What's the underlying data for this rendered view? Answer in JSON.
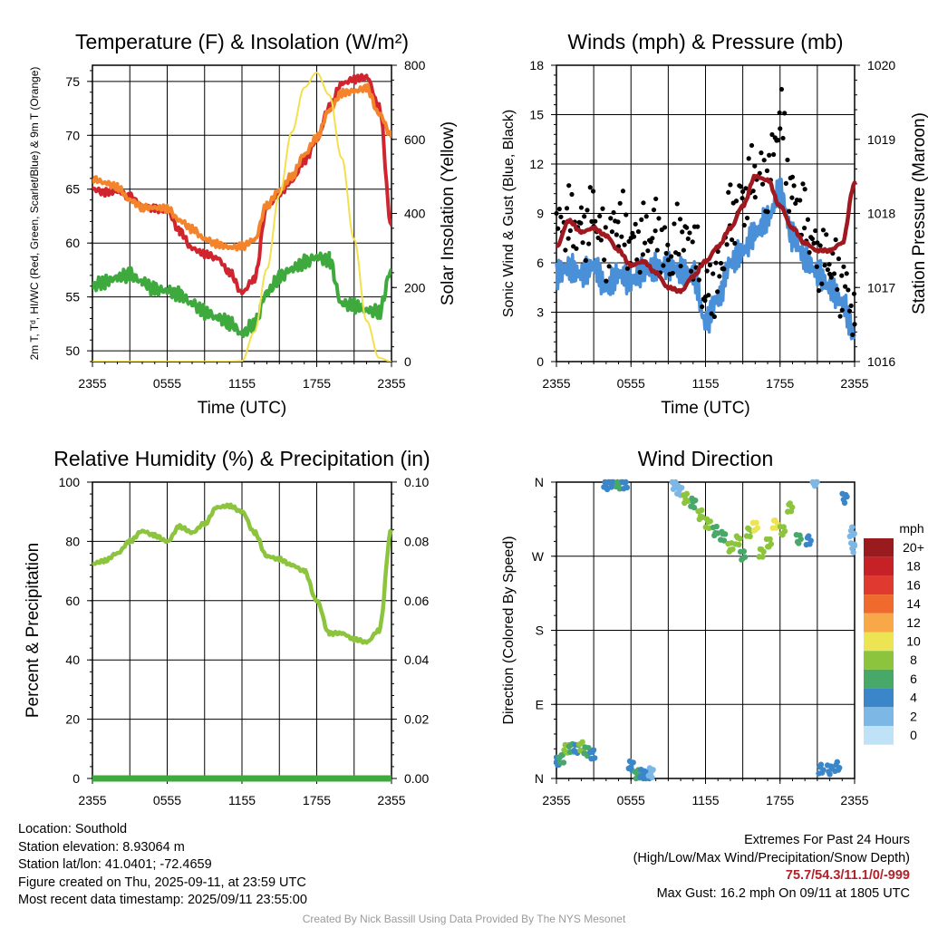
{
  "panels": {
    "temp": {
      "title": "Temperature (F) & Insolation (W/m²)",
      "xlabel": "Time (UTC)",
      "ylabel_left": "2m T, Tᵈ, HI/WC (Red, Green, Scarlet/Blue) & 9m T (Orange)",
      "ylabel_right": "Solar Insolation (Yellow)"
    },
    "wind": {
      "title": "Winds (mph) & Pressure (mb)",
      "xlabel": "Time (UTC)",
      "ylabel_left": "Sonic Wind & Gust (Blue, Black)",
      "ylabel_right": "Station Pressure (Maroon)"
    },
    "rh": {
      "title": "Relative Humidity (%) & Precipitation (in)",
      "ylabel_left": "Percent & Precipitation"
    },
    "dir": {
      "title": "Wind Direction",
      "ylabel_left": "Direction (Colored By Speed)",
      "colorbar_title": "mph"
    }
  },
  "time_ticks": [
    "2355",
    "0555",
    "1155",
    "1755",
    "2355"
  ],
  "chart_data": [
    {
      "type": "line",
      "id": "temp",
      "title": "Temperature (F) & Insolation (W/m²)",
      "xlabel": "Time (UTC)",
      "x": [
        0,
        1,
        2,
        3,
        4,
        5,
        6,
        7,
        8,
        9,
        10,
        11,
        12,
        13,
        14,
        15,
        16,
        17,
        18,
        19,
        20,
        21,
        22,
        23,
        24
      ],
      "ylim": [
        49,
        76.5
      ],
      "yticks": [
        50,
        55,
        60,
        65,
        70,
        75
      ],
      "y2lim": [
        0,
        800
      ],
      "y2ticks": [
        0,
        200,
        400,
        600,
        800
      ],
      "series": [
        {
          "key": "t2m",
          "color": "#d0252e",
          "axis": "left",
          "values": [
            65,
            64.7,
            64.8,
            64.3,
            63.4,
            63.2,
            63,
            61.1,
            59.5,
            59,
            58.6,
            57.3,
            55.4,
            56.7,
            63.3,
            64.6,
            65.8,
            67.6,
            69.6,
            72.6,
            74.8,
            75.2,
            75.4,
            72.7,
            61.6
          ]
        },
        {
          "key": "t9m",
          "color": "#f4842c",
          "axis": "left",
          "values": [
            66,
            65.6,
            65.2,
            64,
            63.3,
            63.3,
            63.2,
            62.1,
            61.3,
            60.4,
            59.9,
            59.6,
            59.7,
            60.3,
            63.5,
            64.9,
            66.2,
            68.2,
            69.8,
            72.3,
            73.9,
            74.1,
            74.4,
            72,
            70
          ]
        },
        {
          "key": "td",
          "color": "#3ea93c",
          "axis": "left",
          "values": [
            56,
            56.4,
            56.8,
            57.1,
            56.4,
            55.7,
            55.6,
            55.2,
            54.4,
            53.6,
            53.1,
            52.6,
            51.6,
            52.5,
            55.4,
            56.8,
            57.6,
            58.2,
            58.7,
            58.4,
            54.4,
            54.2,
            53.8,
            53.6,
            57.5
          ]
        },
        {
          "key": "solar",
          "color": "#f3e04d",
          "axis": "right",
          "values": [
            0,
            0,
            0,
            0,
            0,
            0,
            0,
            0,
            0,
            0,
            0,
            0,
            2,
            80,
            250,
            450,
            620,
            740,
            780,
            720,
            550,
            330,
            110,
            10,
            0
          ]
        }
      ]
    },
    {
      "type": "line",
      "id": "wind",
      "title": "Winds (mph) & Pressure (mb)",
      "xlabel": "Time (UTC)",
      "x": [
        0,
        1,
        2,
        3,
        4,
        5,
        6,
        7,
        8,
        9,
        10,
        11,
        12,
        13,
        14,
        15,
        16,
        17,
        18,
        19,
        20,
        21,
        22,
        23,
        24
      ],
      "ylim": [
        0,
        18
      ],
      "yticks": [
        0,
        3,
        6,
        9,
        12,
        15,
        18
      ],
      "y2lim": [
        1016,
        1020
      ],
      "y2ticks": [
        1016,
        1017,
        1018,
        1019,
        1020
      ],
      "series": [
        {
          "key": "wind",
          "color": "#4a90d9",
          "axis": "left",
          "values": [
            5.3,
            5.7,
            5.3,
            5.8,
            4.5,
            5.3,
            4.9,
            5.5,
            5.7,
            5.8,
            5.5,
            5.3,
            2.4,
            3.8,
            6,
            6.7,
            7.8,
            8.7,
            10.4,
            7.6,
            6.3,
            5.4,
            4.5,
            3.6,
            1.6
          ]
        },
        {
          "key": "gust",
          "color": "#000000",
          "axis": "left",
          "values": [
            8.1,
            8.6,
            8,
            8.9,
            7,
            8.6,
            7.1,
            7.6,
            8.1,
            6.3,
            7.7,
            6.9,
            4.1,
            5,
            8.8,
            9.9,
            11.4,
            11,
            14.8,
            10.1,
            8.7,
            6.4,
            6.1,
            4.7,
            3.2
          ]
        },
        {
          "key": "pressure",
          "color": "#a01820",
          "axis": "right",
          "values": [
            1017.55,
            1017.9,
            1017.75,
            1017.8,
            1017.7,
            1017.5,
            1017.3,
            1017.35,
            1017.2,
            1017.0,
            1016.95,
            1017.15,
            1017.35,
            1017.55,
            1017.8,
            1018.1,
            1018.5,
            1018.45,
            1018.1,
            1017.8,
            1017.6,
            1017.5,
            1017.5,
            1017.6,
            1018.4
          ]
        }
      ]
    },
    {
      "type": "line",
      "id": "rh",
      "title": "Relative Humidity (%) & Precipitation (in)",
      "x": [
        0,
        1,
        2,
        3,
        4,
        5,
        6,
        7,
        8,
        9,
        10,
        11,
        12,
        13,
        14,
        15,
        16,
        17,
        18,
        19,
        20,
        21,
        22,
        23,
        24
      ],
      "ylim": [
        0,
        100
      ],
      "yticks": [
        0,
        20,
        40,
        60,
        80,
        100
      ],
      "y2lim": [
        0,
        0.1
      ],
      "y2ticks": [
        "0.00",
        "0.02",
        "0.04",
        "0.06",
        "0.08",
        "0.10"
      ],
      "series": [
        {
          "key": "rh",
          "color": "#8cc43d",
          "axis": "left",
          "values": [
            72.5,
            73.5,
            76,
            80,
            83.5,
            82,
            80,
            85,
            83,
            86,
            91.5,
            92,
            90,
            83,
            75,
            74,
            72,
            70,
            60,
            49,
            49,
            47,
            46,
            50,
            84
          ]
        },
        {
          "key": "precip",
          "color": "#3ea93c",
          "axis": "right",
          "values": [
            0,
            0,
            0,
            0,
            0,
            0,
            0,
            0,
            0,
            0,
            0,
            0,
            0,
            0,
            0,
            0,
            0,
            0,
            0,
            0,
            0,
            0,
            0,
            0,
            0
          ]
        }
      ]
    },
    {
      "type": "scatter",
      "id": "dir",
      "title": "Wind Direction",
      "x": [
        0.1,
        0.4,
        0.8,
        1.2,
        1.6,
        2.0,
        2.4,
        2.9,
        4.0,
        4.5,
        5.0,
        5.5,
        6.0,
        6.5,
        6.9,
        7.3,
        7.6,
        9.5,
        9.9,
        10.4,
        11.0,
        11.6,
        12.2,
        12.8,
        13.4,
        14.0,
        14.6,
        15.0,
        15.5,
        16.0,
        16.5,
        17.1,
        17.6,
        18.2,
        18.8,
        19.5,
        20.3,
        20.8,
        21.3,
        22.0,
        22.6,
        23.2,
        23.8,
        23.9
      ],
      "y": [
        20,
        25,
        35,
        38,
        35,
        40,
        32,
        30,
        356,
        360,
        357,
        358,
        15,
        5,
        5,
        3,
        7,
        357,
        350,
        340,
        335,
        320,
        310,
        300,
        295,
        280,
        290,
        270,
        300,
        305,
        275,
        285,
        310,
        300,
        330,
        290,
        290,
        360,
        12,
        10,
        15,
        340,
        300,
        280
      ],
      "speed": [
        3,
        6,
        7,
        5,
        4,
        7,
        6,
        4,
        4,
        3,
        5,
        4,
        4,
        6,
        4,
        3,
        1,
        1,
        2,
        7,
        6,
        8,
        7,
        6,
        5,
        7,
        8,
        6,
        7,
        9,
        7,
        8,
        10,
        7,
        7,
        6,
        4,
        2,
        4,
        3,
        4,
        3,
        2,
        1
      ],
      "ylim": [
        0,
        360
      ],
      "ytick_labels": [
        "N",
        "E",
        "S",
        "W",
        "N"
      ],
      "colorbar": {
        "title": "mph",
        "labels": [
          "20+",
          "18",
          "16",
          "14",
          "12",
          "10",
          "8",
          "6",
          "4",
          "2",
          "0"
        ],
        "colors": [
          "#9a1b1e",
          "#c62127",
          "#e03a30",
          "#ef6a2c",
          "#f8a848",
          "#ede453",
          "#8cc43d",
          "#48a86a",
          "#3a86c9",
          "#7cb7e6",
          "#bfe2f7"
        ]
      }
    }
  ],
  "footer": {
    "location": "Location: Southold",
    "elevation": "Station elevation: 8.93064 m",
    "latlon": "Station lat/lon: 41.0401; -72.4659",
    "created": "Figure created on Thu, 2025-09-11, at 23:59 UTC",
    "recent": "Most recent data timestamp: 2025/09/11 23:55:00",
    "extremes_title": "Extremes For Past 24 Hours",
    "extremes_subtitle": "(High/Low/Max Wind/Precipitation/Snow Depth)",
    "extremes_values": "75.7/54.3/11.1/0/-999",
    "max_gust": "Max Gust: 16.2 mph On 09/11 at 1805 UTC",
    "credit": "Created By Nick Bassill Using Data Provided By The NYS Mesonet"
  }
}
